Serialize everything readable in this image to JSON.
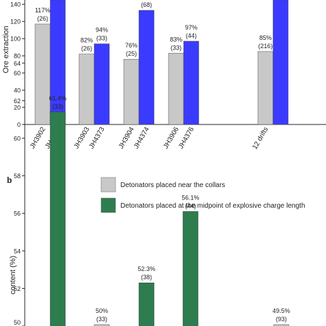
{
  "panel_b_label": "b",
  "chart_data": [
    {
      "type": "bar",
      "panel": "a",
      "ylabel": "Ore extraction",
      "ylim": [
        0,
        145
      ],
      "yticks": [
        0,
        20,
        40,
        60,
        80,
        100,
        120,
        140
      ],
      "groups": [
        {
          "name": "JH3902 / JH4372",
          "bars": [
            {
              "category": "JH3902",
              "series": "near-collars",
              "value": 117,
              "label": "117%",
              "sublabel": "(26)"
            },
            {
              "category": "JH4372",
              "series": "midpoint",
              "value": 145,
              "label": "",
              "sublabel": ""
            }
          ]
        },
        {
          "name": "JH3903 / JH4373",
          "bars": [
            {
              "category": "JH3903",
              "series": "near-collars",
              "value": 82,
              "label": "82%",
              "sublabel": "(26)"
            },
            {
              "category": "JH4373",
              "series": "midpoint",
              "value": 94,
              "label": "94%",
              "sublabel": "(33)"
            }
          ]
        },
        {
          "name": "JH3904 / JH4374",
          "bars": [
            {
              "category": "JH3904",
              "series": "near-collars",
              "value": 76,
              "label": "76%",
              "sublabel": "(25)"
            },
            {
              "category": "JH4374",
              "series": "midpoint",
              "value": 133,
              "label": "",
              "sublabel": "(68)"
            }
          ]
        },
        {
          "name": "JH3906 / JH4376",
          "bars": [
            {
              "category": "JH3906",
              "series": "near-collars",
              "value": 83,
              "label": "83%",
              "sublabel": "(33)"
            },
            {
              "category": "JH4376",
              "series": "midpoint",
              "value": 97,
              "label": "97%",
              "sublabel": "(44)"
            }
          ]
        },
        {
          "name": "12 drifts",
          "bars": [
            {
              "category": "12 drifts",
              "series": "near-collars",
              "value": 85,
              "label": "85%",
              "sublabel": "(216)"
            },
            {
              "category": "",
              "series": "midpoint",
              "value": 145,
              "label": "",
              "sublabel": ""
            }
          ]
        }
      ],
      "colors": {
        "near-collars": "#c8c8c8",
        "midpoint": "#3b3bff"
      }
    },
    {
      "type": "bar",
      "panel": "b",
      "ylabel": "content (%)",
      "ylim": [
        50,
        64
      ],
      "yticks": [
        50,
        52,
        54,
        56,
        58,
        60,
        62,
        64
      ],
      "legend": [
        {
          "series": "near-collars",
          "label": "Detonators placed near the collars",
          "color": "#c8c8c8"
        },
        {
          "series": "midpoint",
          "label": "Detonators placed at the midpoint of explosive charge length",
          "color": "#2e7d4f"
        }
      ],
      "bars": [
        {
          "series": "midpoint",
          "value": 61.4,
          "label": "61.4%",
          "sublabel": "(33)"
        },
        {
          "series": "near-collars",
          "value": 50,
          "label": "50%",
          "sublabel": "(33)"
        },
        {
          "series": "midpoint",
          "value": 52.3,
          "label": "52.3%",
          "sublabel": "(38)"
        },
        {
          "series": "midpoint",
          "value": 56.1,
          "label": "56.1%",
          "sublabel": "(44)"
        },
        {
          "series": "near-collars",
          "value": 49.5,
          "label": "49.5%",
          "sublabel": "(93)"
        }
      ],
      "colors": {
        "near-collars": "#c8c8c8",
        "midpoint": "#2e7d4f"
      }
    }
  ]
}
